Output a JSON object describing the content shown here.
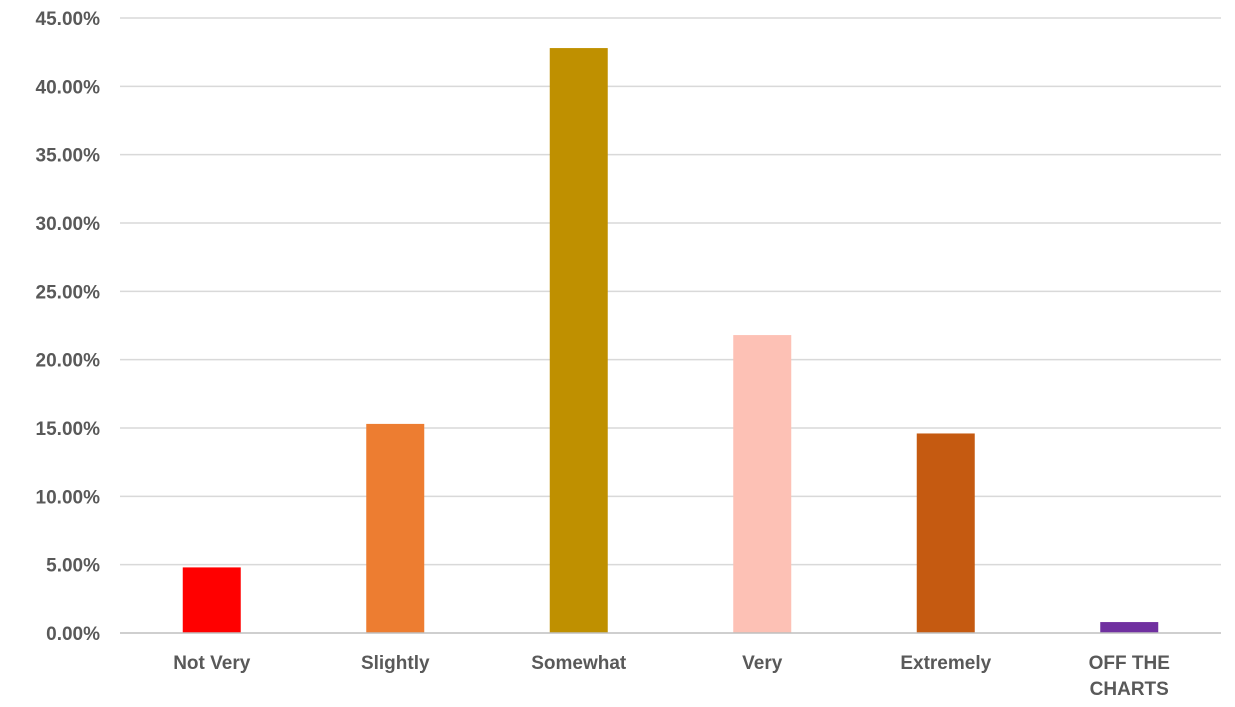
{
  "chart_data": {
    "type": "bar",
    "title": "",
    "xlabel": "",
    "ylabel": "",
    "categories": [
      "Not Very",
      "Slightly",
      "Somewhat",
      "Very",
      "Extremely",
      "OFF THE CHARTS"
    ],
    "values": [
      4.8,
      15.3,
      42.8,
      21.8,
      14.6,
      0.8
    ],
    "colors": [
      "#ff0000",
      "#ed7d31",
      "#bf9000",
      "#fdc1b5",
      "#c55a11",
      "#7030a0"
    ],
    "ylim": [
      0,
      45
    ],
    "yticks": [
      0,
      5,
      10,
      15,
      20,
      25,
      30,
      35,
      40,
      45
    ],
    "ytick_labels": [
      "0.00%",
      "5.00%",
      "10.00%",
      "15.00%",
      "20.00%",
      "25.00%",
      "30.00%",
      "35.00%",
      "40.00%",
      "45.00%"
    ],
    "grid": true,
    "legend": "none"
  }
}
